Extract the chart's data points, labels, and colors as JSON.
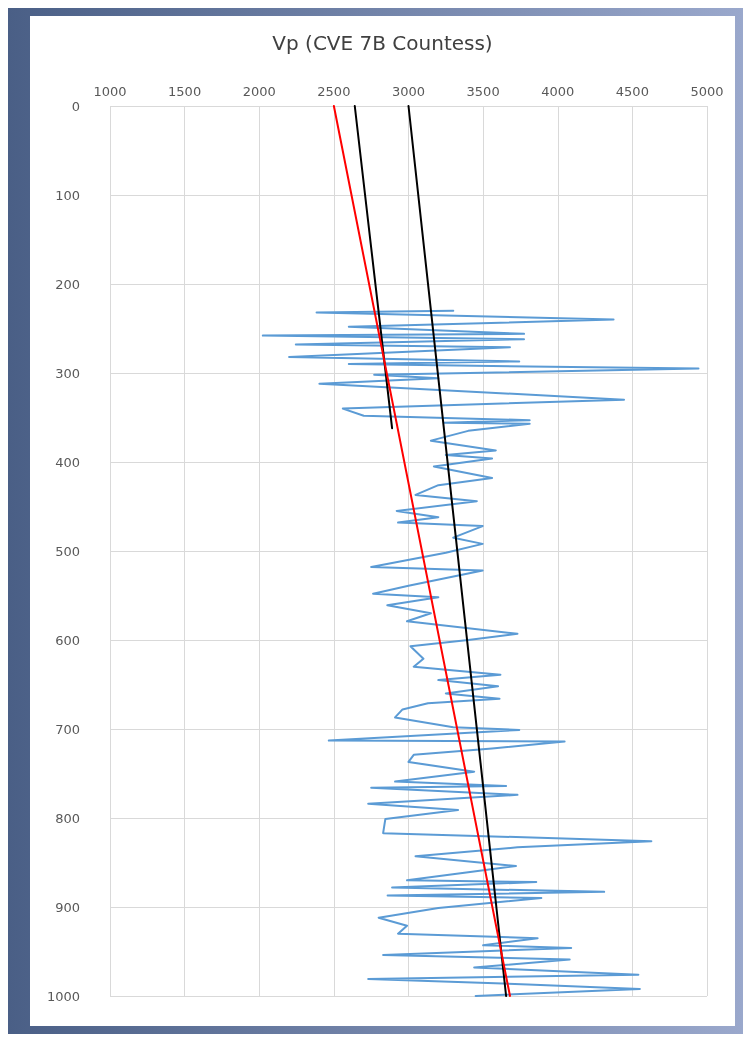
{
  "chart_data": {
    "type": "line",
    "title": "Vp (CVE 7B Countess)",
    "xlim": [
      1000,
      5000
    ],
    "xticks": [
      1000,
      1500,
      2000,
      2500,
      3000,
      3500,
      4000,
      4500,
      5000
    ],
    "ylim": [
      1000,
      0
    ],
    "yticks": [
      0,
      100,
      200,
      300,
      400,
      500,
      600,
      700,
      800,
      900,
      1000
    ],
    "grid": true,
    "marker": "none",
    "line_style": "solid",
    "series": [
      {
        "color": "#5b9bd5",
        "x": [
          3300,
          2384,
          4374,
          2600,
          3774,
          2024,
          3774,
          2245,
          3680,
          2200,
          3742,
          2600,
          4943,
          2770,
          3200,
          2403,
          4444,
          2560,
          2700,
          3812,
          3237,
          3812,
          3400,
          3150,
          3585,
          3250,
          3560,
          3170,
          3560,
          3200,
          3047,
          3458,
          2921,
          3200,
          2930,
          3497,
          3300,
          3497,
          3250,
          2750,
          3497,
          3000,
          2763,
          3200,
          2858,
          3150,
          2990,
          3730,
          3400,
          3013,
          3100,
          3035,
          3616,
          3200,
          3600,
          3250,
          3610,
          3130,
          2960,
          2910,
          3300,
          3742,
          2466,
          4046,
          3560,
          3035,
          3000,
          3440,
          2910,
          3654,
          2750,
          3730,
          2730,
          3332,
          2845,
          2830,
          4627,
          3730,
          3047,
          3720,
          3400,
          2990,
          3856,
          2890,
          4311,
          2860,
          3890,
          3200,
          2800,
          2990,
          2930,
          3865,
          3500,
          4090,
          2830,
          4080,
          3440,
          4540,
          2730,
          3800,
          4550,
          3450
        ],
        "values": [
          230,
          232,
          240,
          248,
          256,
          258,
          262,
          268,
          271,
          282,
          287,
          290,
          295,
          302,
          306,
          312,
          330,
          340,
          348,
          353,
          356,
          357,
          365,
          376,
          387,
          392,
          396,
          405,
          418,
          426,
          437,
          444,
          455,
          462,
          468,
          472,
          485,
          492,
          502,
          518,
          522,
          539,
          548,
          552,
          561,
          570,
          579,
          593,
          600,
          607,
          621,
          630,
          639,
          645,
          652,
          660,
          666,
          671,
          678,
          687,
          698,
          701,
          713,
          714,
          722,
          729,
          737,
          748,
          759,
          764,
          766,
          774,
          784,
          791,
          801,
          817,
          826,
          833,
          843,
          854,
          861,
          870,
          872,
          878,
          883,
          887,
          890,
          901,
          912,
          921,
          930,
          935,
          943,
          946,
          954,
          959,
          968,
          976,
          981,
          987,
          992,
          1000
        ]
      },
      {
        "color": "#000000",
        "x": [
          2640,
          2890
        ],
        "values": [
          0,
          362
        ]
      },
      {
        "color": "#000000",
        "x": [
          3000,
          3654
        ],
        "values": [
          0,
          1000
        ]
      },
      {
        "color": "#ff0000",
        "x": [
          2500,
          3680
        ],
        "values": [
          0,
          1000
        ]
      }
    ]
  }
}
